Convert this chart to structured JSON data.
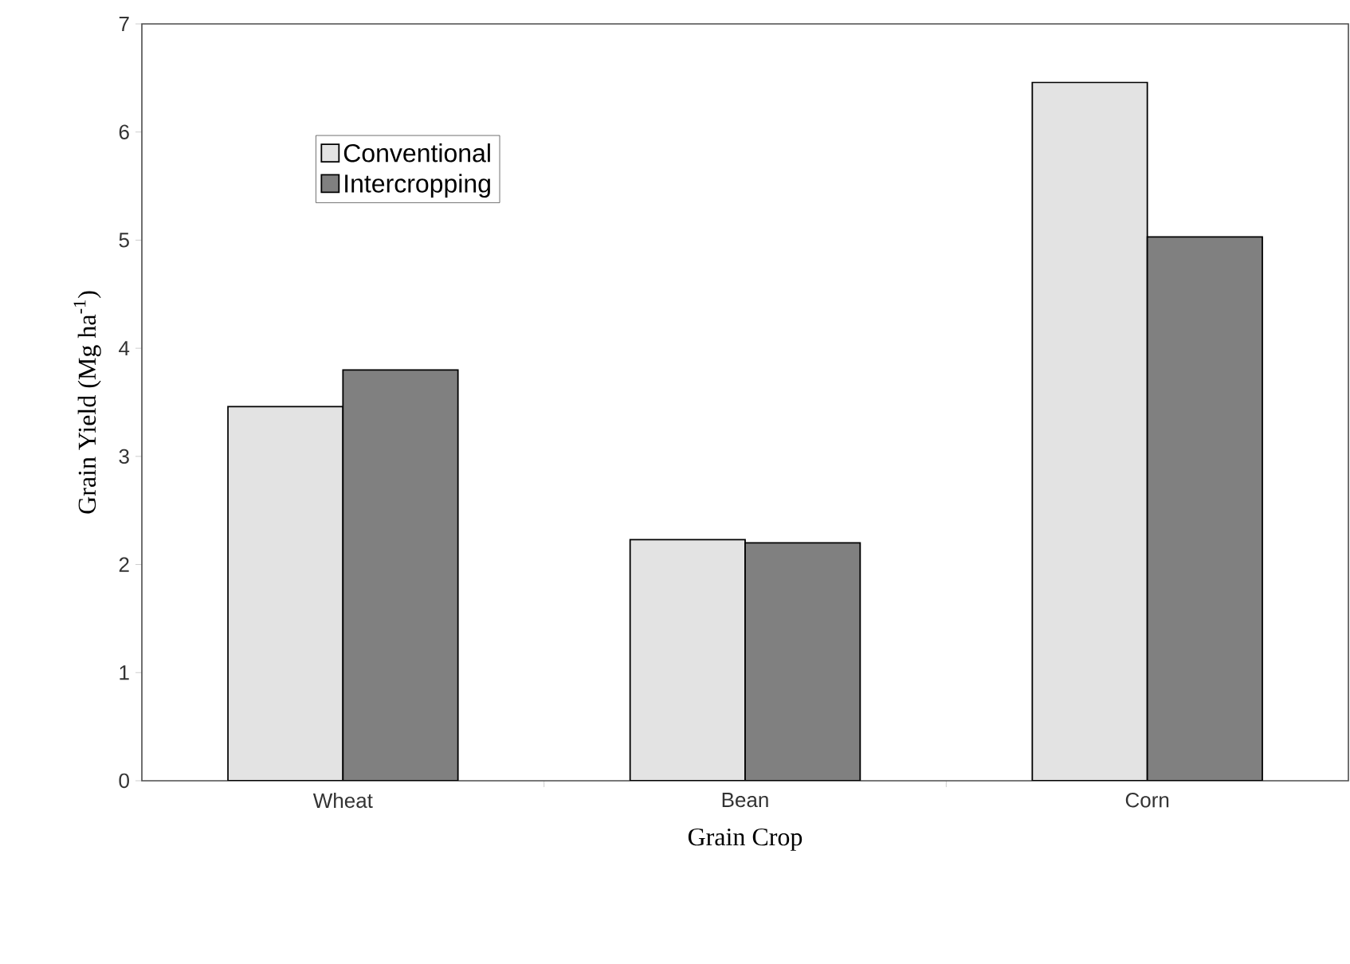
{
  "chart_data": {
    "type": "bar",
    "xlabel": "Grain Crop",
    "ylabel": "Grain Yield (Mg ha$^{-1}$)",
    "categories": [
      "Wheat",
      "Bean",
      "Corn"
    ],
    "series": [
      {
        "name": "Conventional",
        "color": "#e3e3e3",
        "values": [
          3.46,
          2.23,
          6.46
        ]
      },
      {
        "name": "Intercropping",
        "color": "#808080",
        "values": [
          3.8,
          2.2,
          5.03
        ]
      }
    ],
    "ylim": [
      0,
      7
    ],
    "yticks": [
      0,
      1,
      2,
      3,
      4,
      5,
      6,
      7
    ],
    "legend": "top left",
    "grid": false
  }
}
